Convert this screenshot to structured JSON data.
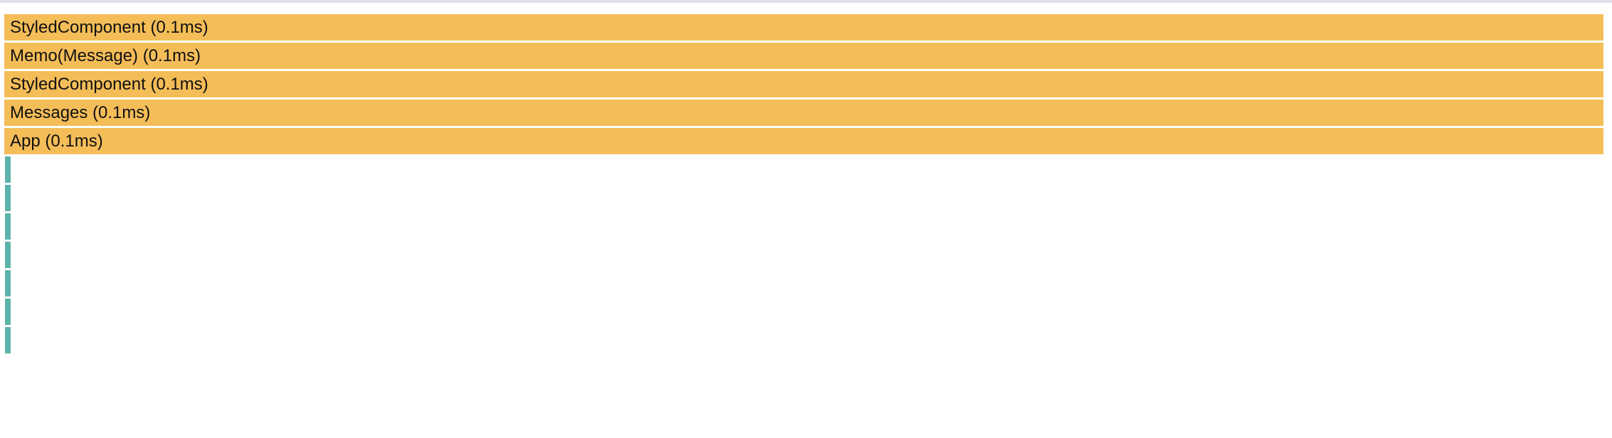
{
  "flamegraph": {
    "rows": [
      {
        "label": "StyledComponent (0.1ms)",
        "color": "#f4bd58"
      },
      {
        "label": "Memo(Message) (0.1ms)",
        "color": "#f4bd58"
      },
      {
        "label": "StyledComponent (0.1ms)",
        "color": "#f4bd58"
      },
      {
        "label": "Messages (0.1ms)",
        "color": "#f4bd58"
      },
      {
        "label": "App (0.1ms)",
        "color": "#f4bd58"
      }
    ],
    "collapsed_row_count": 7,
    "collapsed_color": "#5db3ab"
  }
}
